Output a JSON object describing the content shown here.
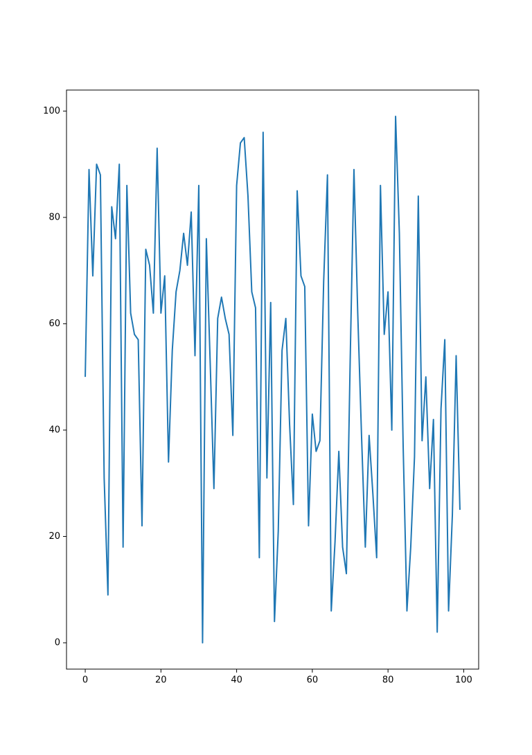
{
  "chart_data": {
    "type": "line",
    "x": [
      0,
      1,
      2,
      3,
      4,
      5,
      6,
      7,
      8,
      9,
      10,
      11,
      12,
      13,
      14,
      15,
      16,
      17,
      18,
      19,
      20,
      21,
      22,
      23,
      24,
      25,
      26,
      27,
      28,
      29,
      30,
      31,
      32,
      33,
      34,
      35,
      36,
      37,
      38,
      39,
      40,
      41,
      42,
      43,
      44,
      45,
      46,
      47,
      48,
      49,
      50,
      51,
      52,
      53,
      54,
      55,
      56,
      57,
      58,
      59,
      60,
      61,
      62,
      63,
      64,
      65,
      66,
      67,
      68,
      69,
      70,
      71,
      72,
      73,
      74,
      75,
      76,
      77,
      78,
      79,
      80,
      81,
      82,
      83,
      84,
      85,
      86,
      87,
      88,
      89,
      90,
      91,
      92,
      93,
      94,
      95,
      96,
      97,
      98,
      99
    ],
    "series": [
      {
        "color": "#1f77b4",
        "values": [
          50,
          89,
          69,
          90,
          88,
          31,
          9,
          82,
          76,
          90,
          18,
          86,
          62,
          58,
          57,
          22,
          74,
          71,
          62,
          93,
          62,
          69,
          34,
          55,
          66,
          70,
          77,
          71,
          81,
          54,
          86,
          0,
          76,
          53,
          29,
          61,
          65,
          61,
          58,
          39,
          86,
          94,
          95,
          84,
          66,
          63,
          16,
          96,
          31,
          64,
          4,
          21,
          55,
          61,
          41,
          26,
          85,
          69,
          67,
          22,
          43,
          36,
          38,
          68,
          88,
          6,
          19,
          36,
          18,
          13,
          53,
          89,
          62,
          39,
          18,
          39,
          28,
          16,
          86,
          58,
          66,
          40,
          99,
          77,
          37,
          6,
          18,
          35,
          84,
          38,
          50,
          29,
          42,
          2,
          44,
          57,
          6,
          24,
          54,
          25
        ]
      }
    ],
    "xlim": [
      -4.95,
      103.95
    ],
    "ylim": [
      -4.95,
      103.95
    ],
    "xticks": [
      0,
      20,
      40,
      60,
      80,
      100
    ],
    "yticks": [
      0,
      20,
      40,
      60,
      80,
      100
    ],
    "grid": false
  }
}
